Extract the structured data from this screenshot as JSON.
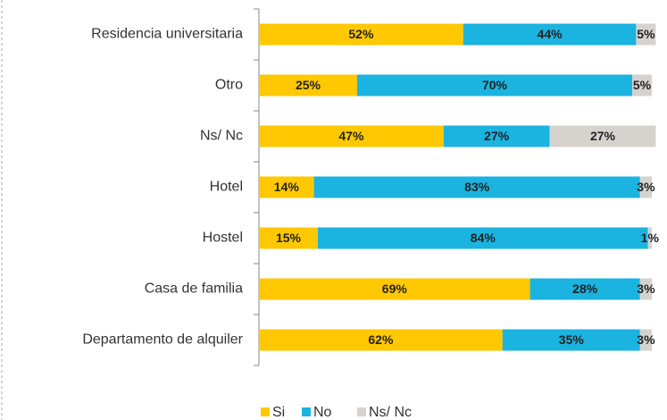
{
  "chart_data": {
    "type": "stacked-barh",
    "categories": [
      "Residencia universitaria",
      "Otro",
      "Ns/ Nc",
      "Hotel",
      "Hostel",
      "Casa de familia",
      "Departamento de alquiler"
    ],
    "series": [
      {
        "name": "Si",
        "color": "#FFC800",
        "values": [
          52,
          25,
          47,
          14,
          15,
          69,
          62
        ],
        "value_labels": [
          "52%",
          "25%",
          "47%",
          "14%",
          "15%",
          "69%",
          "62%"
        ]
      },
      {
        "name": "No",
        "color": "#1BB3E0",
        "values": [
          44,
          70,
          27,
          83,
          84,
          28,
          35
        ],
        "value_labels": [
          "44%",
          "70%",
          "27%",
          "83%",
          "84%",
          "28%",
          "35%"
        ]
      },
      {
        "name": "Ns/ Nc",
        "color": "#D6D3CF",
        "values": [
          5,
          5,
          27,
          3,
          1,
          3,
          3
        ],
        "value_labels": [
          "5%",
          "5%",
          "27%",
          "3%",
          "1%",
          "3%",
          "3%"
        ]
      }
    ],
    "legend": "bottom"
  }
}
